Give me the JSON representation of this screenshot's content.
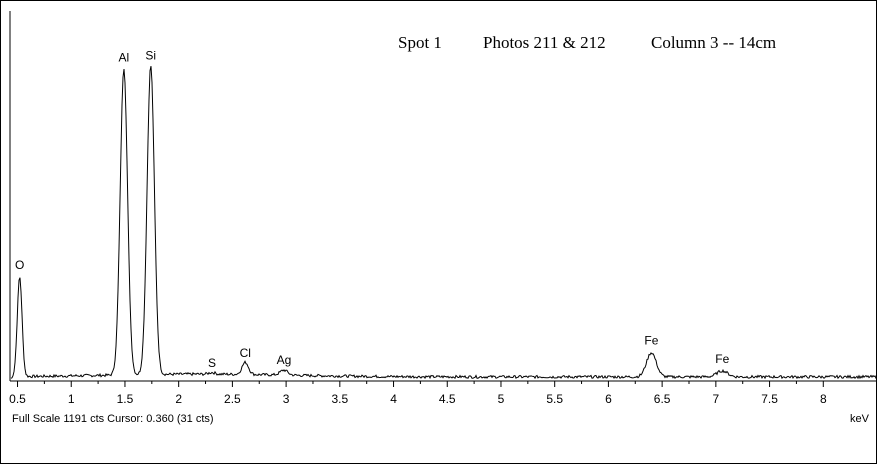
{
  "header": {
    "spot": "Spot 1",
    "photos": "Photos 211 & 212",
    "column": "Column 3 -- 14cm"
  },
  "footer": {
    "full_scale": "Full Scale 1191 cts Cursor: 0.360  (31 cts)",
    "x_unit": "keV"
  },
  "chart_data": {
    "type": "line",
    "title": "Spot 1    Photos 211 & 212    Column 3 -- 14cm",
    "xlabel": "keV",
    "ylabel": "",
    "xlim": [
      0.43,
      8.5
    ],
    "ylim": [
      0,
      1191
    ],
    "x_ticks": [
      0.5,
      1,
      1.5,
      2,
      2.5,
      3,
      3.5,
      4,
      4.5,
      5,
      5.5,
      6,
      6.5,
      7,
      7.5,
      8
    ],
    "x_tick_labels": [
      "0.5",
      "1",
      "1.5",
      "2",
      "2.5",
      "3",
      "3.5",
      "4",
      "4.5",
      "5",
      "5.5",
      "6",
      "6.5",
      "7",
      "7.5",
      "8"
    ],
    "grid": false,
    "baseline_counts": 15,
    "peaks": [
      {
        "label": "O",
        "energy": 0.52,
        "counts": 363,
        "width": 0.022
      },
      {
        "label": "Al",
        "energy": 1.49,
        "counts": 1116,
        "width": 0.034
      },
      {
        "label": "Si",
        "energy": 1.74,
        "counts": 1123,
        "width": 0.034
      },
      {
        "label": "S",
        "energy": 2.31,
        "counts": 6,
        "width": 0.03
      },
      {
        "label": "Cl",
        "energy": 2.62,
        "counts": 44,
        "width": 0.03
      },
      {
        "label": "Ag",
        "energy": 2.98,
        "counts": 18,
        "width": 0.035
      },
      {
        "label": "Fe",
        "energy": 6.4,
        "counts": 88,
        "width": 0.045
      },
      {
        "label": "Fe",
        "energy": 7.06,
        "counts": 22,
        "width": 0.05
      }
    ]
  }
}
